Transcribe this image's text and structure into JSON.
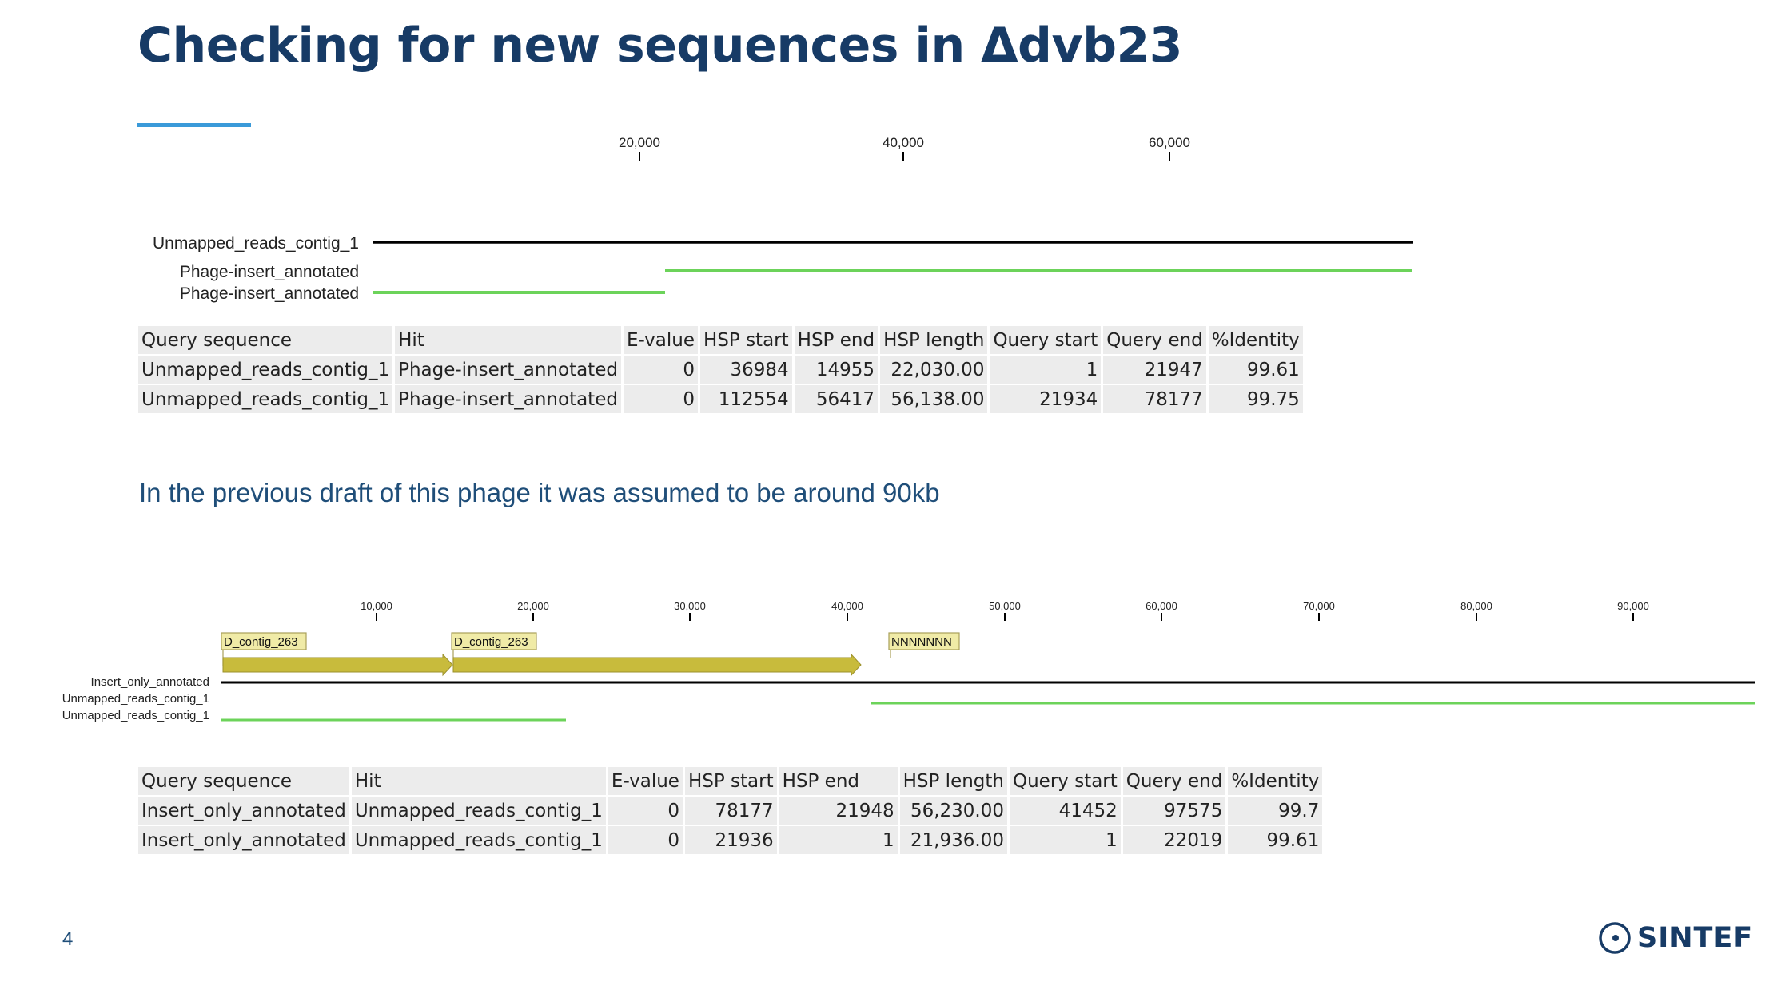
{
  "slide": {
    "title": "Checking for new sequences in Δdvb23",
    "subtitle": "In the previous draft of this phage it was assumed to be around 90kb",
    "page_number": "4",
    "logo_text": "SINTEF",
    "colors": {
      "title": "#173b66",
      "accent_rule": "#3a9ad9",
      "hit_line": "#6cd35a",
      "query_line": "#000000",
      "annotation_arrow": "#c8bb3c"
    }
  },
  "diagram_top": {
    "ruler_ticks": [
      "20,000",
      "40,000",
      "60,000"
    ],
    "track_labels": [
      "Unmapped_reads_contig_1",
      "Phage-insert_annotated",
      "Phage-insert_annotated"
    ]
  },
  "table_top": {
    "columns": [
      "Query sequence",
      "Hit",
      "E-value",
      "HSP start",
      "HSP end",
      "HSP length",
      "Query start",
      "Query end",
      "%Identity"
    ],
    "rows": [
      [
        "Unmapped_reads_contig_1",
        "Phage-insert_annotated",
        "0",
        "36984",
        "14955",
        "22,030.00",
        "1",
        "21947",
        "99.61"
      ],
      [
        "Unmapped_reads_contig_1",
        "Phage-insert_annotated",
        "0",
        "112554",
        "56417",
        "56,138.00",
        "21934",
        "78177",
        "99.75"
      ]
    ]
  },
  "diagram_bottom": {
    "ruler_ticks": [
      "10,000",
      "20,000",
      "30,000",
      "40,000",
      "50,000",
      "60,000",
      "70,000",
      "80,000",
      "90,000"
    ],
    "annotations": [
      "D_contig_263",
      "D_contig_263",
      "NNNNNNN"
    ],
    "track_labels": [
      "Insert_only_annotated",
      "Unmapped_reads_contig_1",
      "Unmapped_reads_contig_1"
    ]
  },
  "table_bottom": {
    "columns": [
      "Query sequence",
      "Hit",
      "E-value",
      "HSP start",
      "HSP end",
      "HSP length",
      "Query start",
      "Query end",
      "%Identity"
    ],
    "rows": [
      [
        "Insert_only_annotated",
        "Unmapped_reads_contig_1",
        "0",
        "78177",
        "21948",
        "56,230.00",
        "41452",
        "97575",
        "99.7"
      ],
      [
        "Insert_only_annotated",
        "Unmapped_reads_contig_1",
        "0",
        "21936",
        "1",
        "21,936.00",
        "1",
        "22019",
        "99.61"
      ]
    ]
  }
}
